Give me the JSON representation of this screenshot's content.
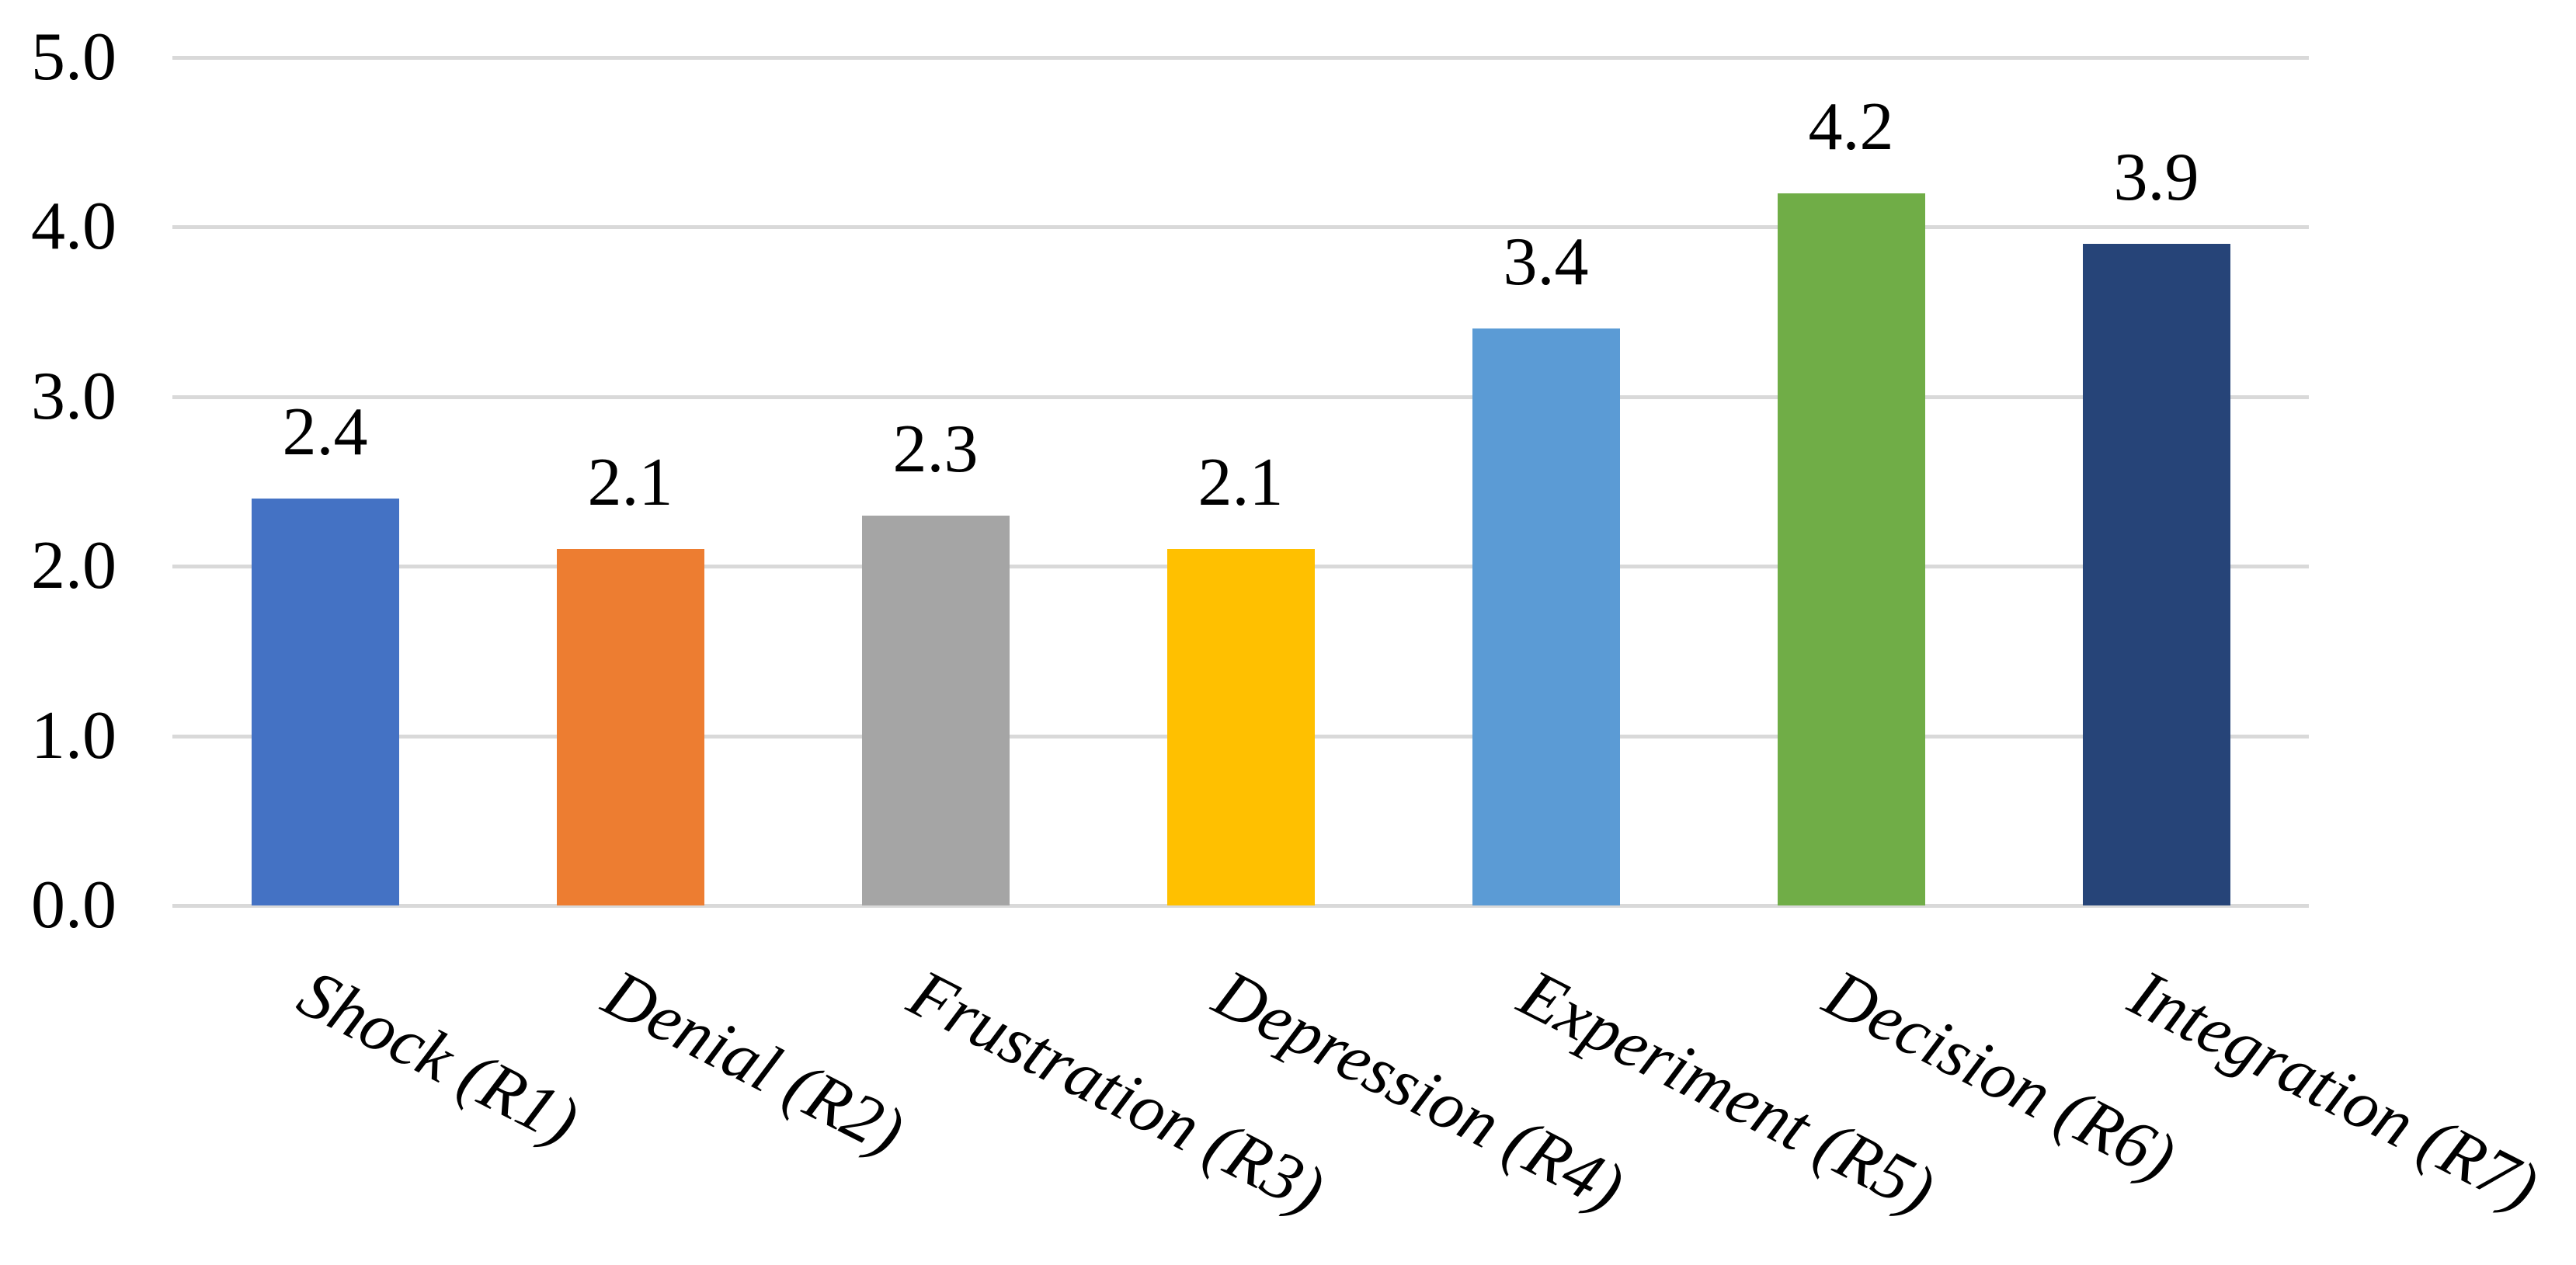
{
  "chart_data": {
    "type": "bar",
    "title": "",
    "xlabel": "",
    "ylabel": "",
    "categories": [
      "Shock (R1)",
      "Denial (R2)",
      "Frustration (R3)",
      "Depression (R4)",
      "Experiment (R5)",
      "Decision (R6)",
      "Integration (R7)"
    ],
    "values": [
      2.4,
      2.1,
      2.3,
      2.1,
      3.4,
      4.2,
      3.9
    ],
    "value_labels": [
      "2.4",
      "2.1",
      "2.3",
      "2.1",
      "3.4",
      "4.2",
      "3.9"
    ],
    "bar_colors": [
      "#4472C4",
      "#ED7D31",
      "#A5A5A5",
      "#FFC000",
      "#5B9BD5",
      "#70AD47",
      "#264478"
    ],
    "ylim": [
      0,
      5
    ],
    "y_ticks": [
      "5.0",
      "4.0",
      "3.0",
      "2.0",
      "1.0",
      "0.0"
    ],
    "grid": true,
    "gridline_color": "#D9D9D9",
    "text_color": "#000000",
    "legend_position": "none"
  }
}
